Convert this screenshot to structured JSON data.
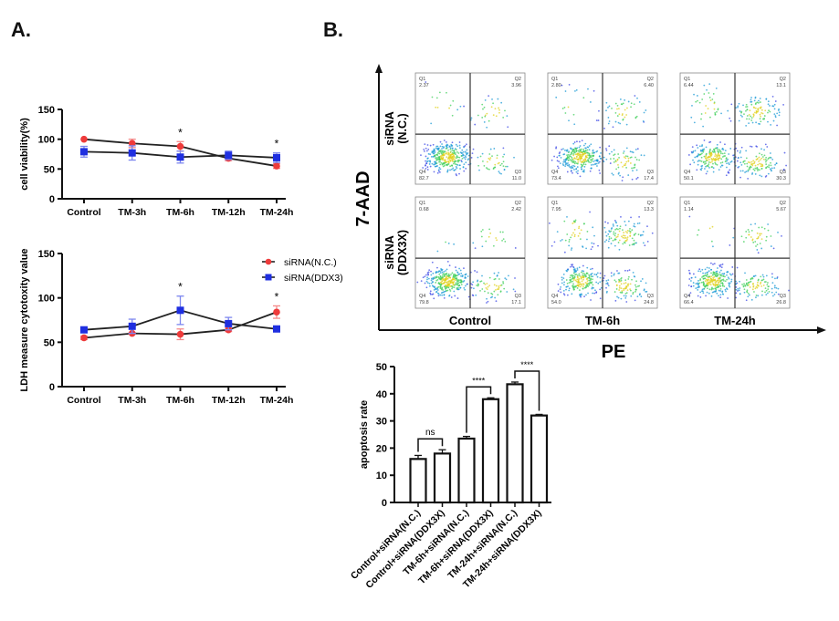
{
  "panels": {
    "a_label": "A.",
    "b_label": "B."
  },
  "chart_data": [
    {
      "id": "viability",
      "type": "line",
      "title": "",
      "xlabel": "",
      "ylabel": "cell viability(%)",
      "ylim": [
        0,
        150
      ],
      "yticks": [
        0,
        50,
        100,
        150
      ],
      "categories": [
        "Control",
        "TM-3h",
        "TM-6h",
        "TM-12h",
        "TM-24h"
      ],
      "series": [
        {
          "name": "siRNA(N.C.)",
          "color": "#ee3b3b",
          "marker": "circle",
          "values": [
            100,
            93,
            88,
            68,
            55
          ],
          "errors": [
            0,
            7,
            8,
            4,
            4
          ]
        },
        {
          "name": "siRNA(DDX3)",
          "color": "#1f2fe0",
          "marker": "square",
          "values": [
            79,
            77,
            70,
            73,
            69
          ],
          "errors": [
            9,
            12,
            10,
            7,
            8
          ]
        }
      ],
      "annotations": [
        {
          "category": "TM-6h",
          "text": "*"
        },
        {
          "category": "TM-24h",
          "text": "*"
        }
      ],
      "grid": false
    },
    {
      "id": "ldh",
      "type": "line",
      "title": "",
      "xlabel": "",
      "ylabel": "LDH measure cytotoxity value",
      "ylim": [
        0,
        150
      ],
      "yticks": [
        0,
        50,
        100,
        150
      ],
      "categories": [
        "Control",
        "TM-3h",
        "TM-6h",
        "TM-12h",
        "TM-24h"
      ],
      "series": [
        {
          "name": "siRNA(N.C.)",
          "color": "#ee3b3b",
          "marker": "circle",
          "values": [
            55,
            60,
            59,
            64,
            84
          ],
          "errors": [
            2,
            1,
            6,
            2,
            7
          ]
        },
        {
          "name": "siRNA(DDX3)",
          "color": "#1f2fe0",
          "marker": "square",
          "values": [
            64,
            68,
            86,
            71,
            65
          ],
          "errors": [
            1,
            8,
            16,
            7,
            1
          ]
        }
      ],
      "annotations": [
        {
          "category": "TM-6h",
          "text": "*"
        },
        {
          "category": "TM-24h",
          "text": "*"
        }
      ],
      "legend": {
        "placement": "right",
        "entries": [
          "siRNA(N.C.)",
          "siRNA(DDX3)"
        ]
      },
      "grid": false
    },
    {
      "id": "flow",
      "type": "scatter",
      "title": "",
      "xlabel": "PE",
      "ylabel": "7-AAD",
      "row_labels": [
        [
          "siRNA",
          "(N.C.)"
        ],
        [
          "siRNA",
          "(DDX3X)"
        ]
      ],
      "col_labels": [
        "Control",
        "TM-6h",
        "TM-24h"
      ],
      "quadrant_names": [
        "Q1",
        "Q2",
        "Q3",
        "Q4"
      ],
      "plots": [
        {
          "row": 0,
          "col": 0,
          "Q1": "2.37",
          "Q2": "3.96",
          "Q3": "11.0",
          "Q4": "82.7"
        },
        {
          "row": 0,
          "col": 1,
          "Q1": "2.80",
          "Q2": "6.40",
          "Q3": "17.4",
          "Q4": "73.4"
        },
        {
          "row": 0,
          "col": 2,
          "Q1": "6.44",
          "Q2": "13.1",
          "Q3": "30.3",
          "Q4": "50.1"
        },
        {
          "row": 1,
          "col": 0,
          "Q1": "0.68",
          "Q2": "2.42",
          "Q3": "17.1",
          "Q4": "79.8"
        },
        {
          "row": 1,
          "col": 1,
          "Q1": "7.95",
          "Q2": "13.3",
          "Q3": "24.8",
          "Q4": "54.0"
        },
        {
          "row": 1,
          "col": 2,
          "Q1": "1.14",
          "Q2": "5.67",
          "Q3": "26.8",
          "Q4": "66.4"
        }
      ]
    },
    {
      "id": "apoptosis",
      "type": "bar",
      "title": "",
      "xlabel": "",
      "ylabel": "apoptosis rate",
      "ylim": [
        0,
        50
      ],
      "yticks": [
        0,
        10,
        20,
        30,
        40,
        50
      ],
      "categories": [
        "Control+siRNA(N.C.)",
        "Control+siRNA(DDX3X)",
        "TM-6h+siRNA(N.C.)",
        "TM-6h+siRNA(DDX3X)",
        "TM-24h+siRNA(N.C.)",
        "TM-24h+siRNA(DDX3X)"
      ],
      "values": [
        16,
        18,
        23.5,
        38,
        43.5,
        32
      ],
      "errors": [
        1.3,
        1.4,
        0.8,
        0.5,
        0.8,
        0.4
      ],
      "significance": [
        {
          "from": 0,
          "to": 1,
          "text": "ns"
        },
        {
          "from": 2,
          "to": 3,
          "text": "****"
        },
        {
          "from": 4,
          "to": 5,
          "text": "****"
        }
      ],
      "grid": false
    }
  ]
}
